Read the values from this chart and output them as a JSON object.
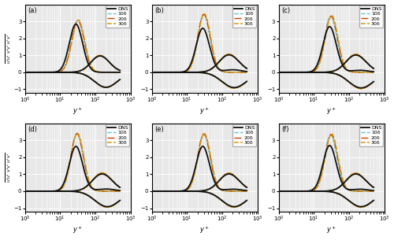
{
  "subplots": [
    "(a)",
    "(b)",
    "(c)",
    "(d)",
    "(e)",
    "(f)"
  ],
  "xlabel": "y^+",
  "ylim": [
    -1.2,
    4.0
  ],
  "yticks": [
    -1,
    0,
    1,
    2,
    3
  ],
  "xlim_log": [
    0,
    3
  ],
  "legend_labels": [
    "DNS",
    "10δ",
    "20δ",
    "30δ"
  ],
  "colors": {
    "DNS": "#111111",
    "10d": "#5bc8d8",
    "20d": "#cc4400",
    "30d": "#d4980a"
  },
  "linestyles": {
    "DNS": "-",
    "10d": "--",
    "20d": "-.",
    "30d": "--"
  },
  "linewidths": {
    "DNS": 1.3,
    "10d": 1.0,
    "20d": 1.0,
    "30d": 1.1
  },
  "background_color": "#e8e8e8",
  "grid_color": "#ffffff",
  "dpi": 100,
  "figsize": [
    5.0,
    3.05
  ]
}
